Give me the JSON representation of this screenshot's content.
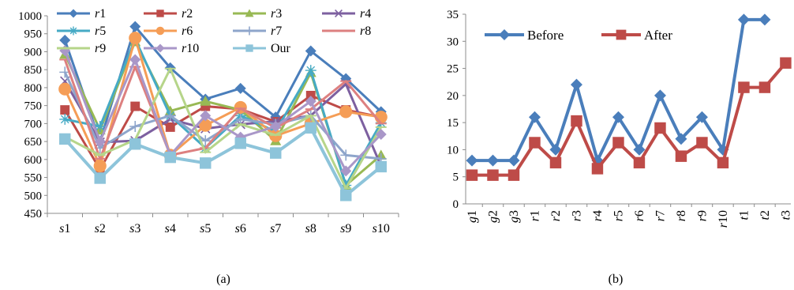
{
  "colors": {
    "axis": "#8c8c8c",
    "text": "#000000",
    "before": "#4a7ebb",
    "after": "#be4b48"
  },
  "chart_data": [
    {
      "type": "line",
      "caption": "(a)",
      "categories": [
        "s1",
        "s2",
        "s3",
        "s4",
        "s5",
        "s6",
        "s7",
        "s8",
        "s9",
        "s10"
      ],
      "ylim": [
        450,
        1000
      ],
      "yticks": [
        450,
        500,
        550,
        600,
        650,
        700,
        750,
        800,
        850,
        900,
        950,
        1000
      ],
      "legend_position": "top",
      "grid": false,
      "series": [
        {
          "name": "r1",
          "color": "#4a7ebb",
          "marker": "diamond",
          "values": [
            932,
            650,
            970,
            855,
            768,
            798,
            718,
            902,
            825,
            733
          ]
        },
        {
          "name": "r2",
          "color": "#be4b48",
          "marker": "square",
          "values": [
            738,
            572,
            748,
            690,
            748,
            740,
            705,
            778,
            738,
            718
          ]
        },
        {
          "name": "r3",
          "color": "#98b954",
          "marker": "triangle",
          "values": [
            893,
            682,
            928,
            735,
            762,
            738,
            652,
            842,
            528,
            612
          ]
        },
        {
          "name": "r4",
          "color": "#7d60a0",
          "marker": "x",
          "values": [
            818,
            648,
            652,
            712,
            686,
            698,
            706,
            722,
            810,
            582
          ]
        },
        {
          "name": "r5",
          "color": "#46aac5",
          "marker": "star",
          "values": [
            712,
            692,
            935,
            722,
            632,
            722,
            678,
            848,
            528,
            702
          ]
        },
        {
          "name": "r6",
          "color": "#f59d56",
          "marker": "circle",
          "values": [
            796,
            582,
            938,
            612,
            695,
            745,
            666,
            700,
            733,
            718
          ]
        },
        {
          "name": "r7",
          "color": "#8ea5cb",
          "marker": "plus",
          "values": [
            843,
            632,
            692,
            722,
            652,
            712,
            698,
            722,
            612,
            602
          ]
        },
        {
          "name": "r8",
          "color": "#dd8080",
          "marker": "dash",
          "values": [
            878,
            602,
            858,
            612,
            632,
            742,
            688,
            740,
            818,
            700
          ]
        },
        {
          "name": "r9",
          "color": "#b6d58a",
          "marker": "dash",
          "values": [
            663,
            612,
            655,
            853,
            620,
            698,
            668,
            722,
            520,
            690
          ]
        },
        {
          "name": "r10",
          "color": "#a997c8",
          "marker": "diamond",
          "values": [
            903,
            650,
            878,
            612,
            722,
            662,
            692,
            762,
            568,
            670
          ]
        },
        {
          "name": "Our",
          "color": "#8dc4da",
          "marker": "square",
          "values": [
            657,
            548,
            643,
            606,
            590,
            645,
            618,
            688,
            500,
            580
          ]
        }
      ]
    },
    {
      "type": "line",
      "caption": "(b)",
      "categories": [
        "g1",
        "g2",
        "g3",
        "r1",
        "r2",
        "r3",
        "r4",
        "r5",
        "r6",
        "r7",
        "r8",
        "r9",
        "r10",
        "t1",
        "t2",
        "t3"
      ],
      "ylim": [
        0,
        35
      ],
      "yticks": [
        0,
        5,
        10,
        15,
        20,
        25,
        30,
        35
      ],
      "legend_position": "top-left",
      "grid": false,
      "series": [
        {
          "name": "Before",
          "color": "#4a7ebb",
          "marker": "diamond",
          "values": [
            8,
            8,
            8,
            16,
            10,
            22,
            8,
            16,
            10,
            20,
            12,
            16,
            10,
            34,
            34,
            null
          ]
        },
        {
          "name": "After",
          "color": "#be4b48",
          "marker": "square",
          "values": [
            5.3,
            5.3,
            5.3,
            11.3,
            7.6,
            15.3,
            6.5,
            11.3,
            7.6,
            14,
            8.8,
            11.3,
            7.6,
            21.5,
            21.5,
            26
          ]
        }
      ]
    }
  ]
}
